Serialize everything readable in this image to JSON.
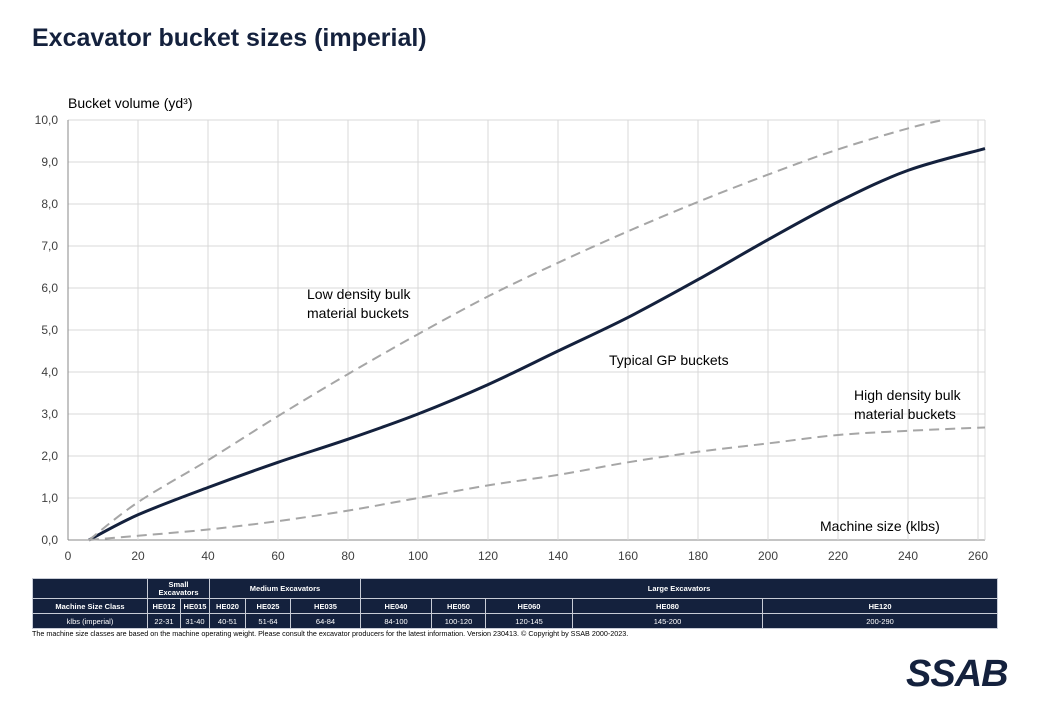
{
  "title": "Excavator bucket sizes (imperial)",
  "chart_data": {
    "type": "line",
    "ylabel": "Bucket volume (yd³)",
    "xlabel": "Machine size (klbs)",
    "xlim": [
      0,
      262
    ],
    "ylim": [
      0,
      10
    ],
    "xticks": [
      0,
      20,
      40,
      60,
      80,
      100,
      120,
      140,
      160,
      180,
      200,
      220,
      240,
      260
    ],
    "yticks": [
      "0,0",
      "1,0",
      "2,0",
      "3,0",
      "4,0",
      "5,0",
      "6,0",
      "7,0",
      "8,0",
      "9,0",
      "10,0"
    ],
    "grid": true,
    "series": [
      {
        "name": "Typical GP buckets",
        "style": "solid",
        "color": "#14213d",
        "x": [
          6,
          20,
          40,
          60,
          80,
          100,
          120,
          140,
          160,
          180,
          200,
          220,
          240,
          262
        ],
        "y": [
          0,
          0.6,
          1.25,
          1.85,
          2.4,
          3.0,
          3.7,
          4.5,
          5.3,
          6.2,
          7.15,
          8.05,
          8.8,
          9.32
        ]
      },
      {
        "name": "Low density bulk material buckets",
        "style": "dashed",
        "color": "#a6a6a6",
        "x": [
          6,
          20,
          40,
          60,
          80,
          100,
          120,
          140,
          160,
          180,
          200,
          220,
          240,
          250
        ],
        "y": [
          0,
          0.9,
          1.9,
          2.95,
          3.95,
          4.9,
          5.8,
          6.6,
          7.35,
          8.05,
          8.7,
          9.3,
          9.8,
          10.0
        ]
      },
      {
        "name": "High density bulk material buckets",
        "style": "dashed",
        "color": "#a6a6a6",
        "x": [
          6,
          20,
          40,
          60,
          80,
          100,
          120,
          140,
          160,
          180,
          200,
          220,
          240,
          262
        ],
        "y": [
          0,
          0.1,
          0.25,
          0.45,
          0.7,
          1.0,
          1.3,
          1.55,
          1.85,
          2.1,
          2.3,
          2.5,
          2.6,
          2.68
        ]
      }
    ],
    "annotations": {
      "low_1": "Low density bulk",
      "low_2": "material buckets",
      "gp": "Typical GP buckets",
      "high_1": "High density bulk",
      "high_2": "material buckets"
    }
  },
  "table": {
    "groups": [
      "Small Excavators",
      "Medium Excavators",
      "Large Excavators"
    ],
    "row_class_label": "Machine Size Class",
    "classes": [
      "HE012",
      "HE015",
      "HE020",
      "HE025",
      "HE035",
      "HE040",
      "HE050",
      "HE060",
      "HE080",
      "HE120"
    ],
    "row_klbs_label": "klbs (imperial)",
    "klbs": [
      "22-31",
      "31-40",
      "40-51",
      "51-64",
      "64-84",
      "84-100",
      "100-120",
      "120-145",
      "145-200",
      "200-290"
    ]
  },
  "note": "The machine size classes are based on the machine operating weight. Please consult the excavator producers for the latest information. Version 230413.  © Copyright by SSAB 2000-2023.",
  "logo": "SSAB"
}
